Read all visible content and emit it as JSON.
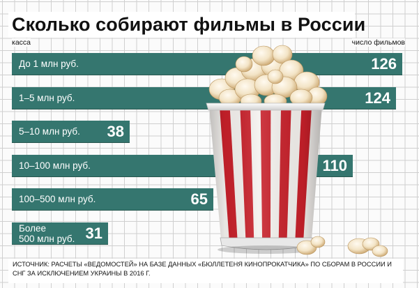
{
  "title": "Сколько собирают фильмы в России",
  "left_label": "касса",
  "right_label": "число фильмов",
  "source": "ИСТОЧНИК: РАСЧЕТЫ «ВЕДОМОСТЕЙ» НА БАЗЕ ДАННЫХ «БЮЛЛЕТЕНЯ КИНОПРОКАТЧИКА» ПО СБОРАМ В РОССИИ И СНГ ЗА ИСКЛЮЧЕНИЕМ УКРАИНЫ В 2016 Г.",
  "colors": {
    "bar": "#35766f",
    "bucket_red": "#c8202a",
    "bucket_white": "#f4f1ee"
  },
  "illustration": "popcorn-bucket",
  "chart_data": {
    "type": "bar",
    "orientation": "horizontal",
    "title": "Сколько собирают фильмы в России",
    "xlabel": "касса",
    "ylabel": "число фильмов",
    "categories": [
      "До 1 млн руб.",
      "1–5 млн руб.",
      "5–10 млн руб.",
      "10–100 млн руб.",
      "100–500 млн руб.",
      "Более 500 млн руб."
    ],
    "category_lines": [
      [
        "До 1 млн руб."
      ],
      [
        "1–5 млн руб."
      ],
      [
        "5–10 млн руб."
      ],
      [
        "10–100 млн руб."
      ],
      [
        "100–500 млн руб."
      ],
      [
        "Более",
        "500 млн руб."
      ]
    ],
    "values": [
      126,
      124,
      38,
      110,
      65,
      31
    ],
    "value_labels": [
      "126",
      "124",
      "38",
      "110",
      "65",
      "31"
    ],
    "xlim": [
      0,
      126
    ],
    "grid": true,
    "legend": "none"
  }
}
